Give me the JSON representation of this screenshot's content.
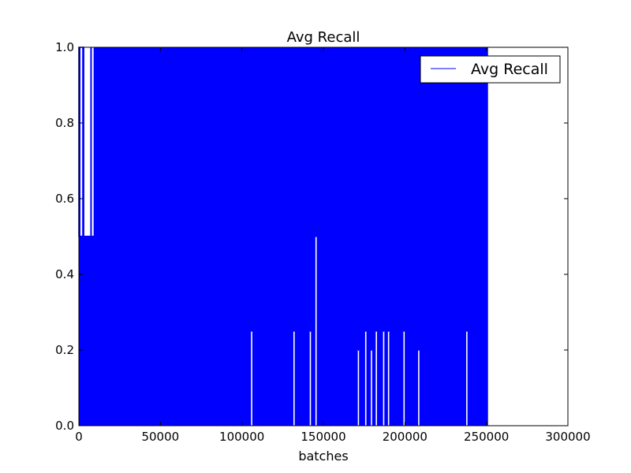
{
  "chart_data": {
    "type": "line",
    "title": "Avg Recall",
    "xlabel": "batches",
    "ylabel": "",
    "xlim": [
      0,
      300000
    ],
    "ylim": [
      0.0,
      1.0
    ],
    "xticks": [
      0,
      50000,
      100000,
      150000,
      200000,
      250000,
      300000
    ],
    "xtick_labels": [
      "0",
      "50000",
      "100000",
      "150000",
      "200000",
      "250000",
      "300000"
    ],
    "yticks": [
      0.0,
      0.2,
      0.4,
      0.6,
      0.8,
      1.0
    ],
    "ytick_labels": [
      "0.0",
      "0.2",
      "0.4",
      "0.6",
      "0.8",
      "1.0"
    ],
    "grid": false,
    "legend_position": "top-right",
    "line_color": "#0000ff",
    "series": [
      {
        "name": "Avg Recall",
        "x_range": [
          0,
          251000
        ],
        "y_range": [
          0.0,
          1.0
        ],
        "description_points": [
          {
            "x": 0,
            "y_low": 0.5,
            "y_high": 1.0
          },
          {
            "x": 3000,
            "y_low": 0.5,
            "y_high": 0.5
          },
          {
            "x": 7000,
            "y_low": 0.5,
            "y_high": 1.0
          },
          {
            "x": 9000,
            "y_low": 0.5,
            "y_high": 0.5
          },
          {
            "x": 10000,
            "y_low": 0.0,
            "y_high": 1.0
          },
          {
            "x": 251000,
            "y_low": 0.0,
            "y_high": 1.0
          }
        ],
        "low_spikes": [
          {
            "x": 106000,
            "y": 0.25
          },
          {
            "x": 132000,
            "y": 0.25
          },
          {
            "x": 142000,
            "y": 0.25
          },
          {
            "x": 145500,
            "y": 0.5
          },
          {
            "x": 171500,
            "y": 0.2
          },
          {
            "x": 176000,
            "y": 0.25
          },
          {
            "x": 179500,
            "y": 0.2
          },
          {
            "x": 182500,
            "y": 0.25
          },
          {
            "x": 187000,
            "y": 0.25
          },
          {
            "x": 190000,
            "y": 0.25
          },
          {
            "x": 199500,
            "y": 0.25
          },
          {
            "x": 208500,
            "y": 0.2
          },
          {
            "x": 238000,
            "y": 0.25
          }
        ]
      }
    ]
  }
}
